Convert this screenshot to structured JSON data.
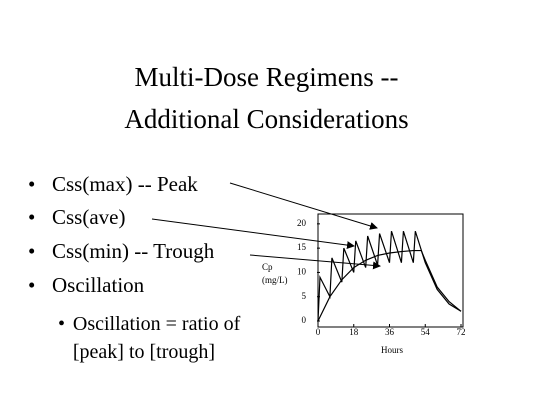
{
  "slide": {
    "title": [
      "Multi-Dose Regimens --",
      "Additional Considerations"
    ],
    "bullets": [
      "Css(max) -- Peak",
      "Css(ave)",
      "Css(min) -- Trough",
      "Oscillation"
    ],
    "sub_bullets": [
      "Oscillation = ratio of [peak] to [trough]"
    ]
  },
  "chart_data": {
    "type": "line",
    "y_label": [
      "Cp",
      "(mg/L)"
    ],
    "x_label": "Hours",
    "xlim": [
      0,
      72
    ],
    "xticks": [
      0,
      18,
      36,
      54,
      72
    ],
    "ylim": [
      0,
      21
    ],
    "yticks": [
      0,
      5,
      10,
      15,
      20
    ],
    "series": [
      {
        "color": "#000000",
        "x": [
          0,
          1,
          6,
          7,
          12,
          13,
          18,
          19,
          24,
          25,
          30,
          31,
          36,
          37,
          42,
          43,
          48,
          49,
          54,
          60,
          66,
          72
        ],
        "values": [
          0,
          9,
          5,
          13,
          8,
          15,
          10,
          16.5,
          11,
          17.5,
          11.5,
          18,
          12,
          18.5,
          12,
          18.5,
          12,
          18.5,
          12,
          6.5,
          3.5,
          2
        ]
      },
      {
        "color": "#000000",
        "x": [
          0,
          6,
          12,
          18,
          24,
          30,
          36,
          42,
          48,
          52,
          54,
          60,
          66,
          72
        ],
        "values": [
          0,
          5,
          8.5,
          11,
          12.5,
          13.5,
          14,
          14.3,
          14.5,
          14.5,
          12.5,
          7,
          4,
          2
        ]
      }
    ]
  }
}
